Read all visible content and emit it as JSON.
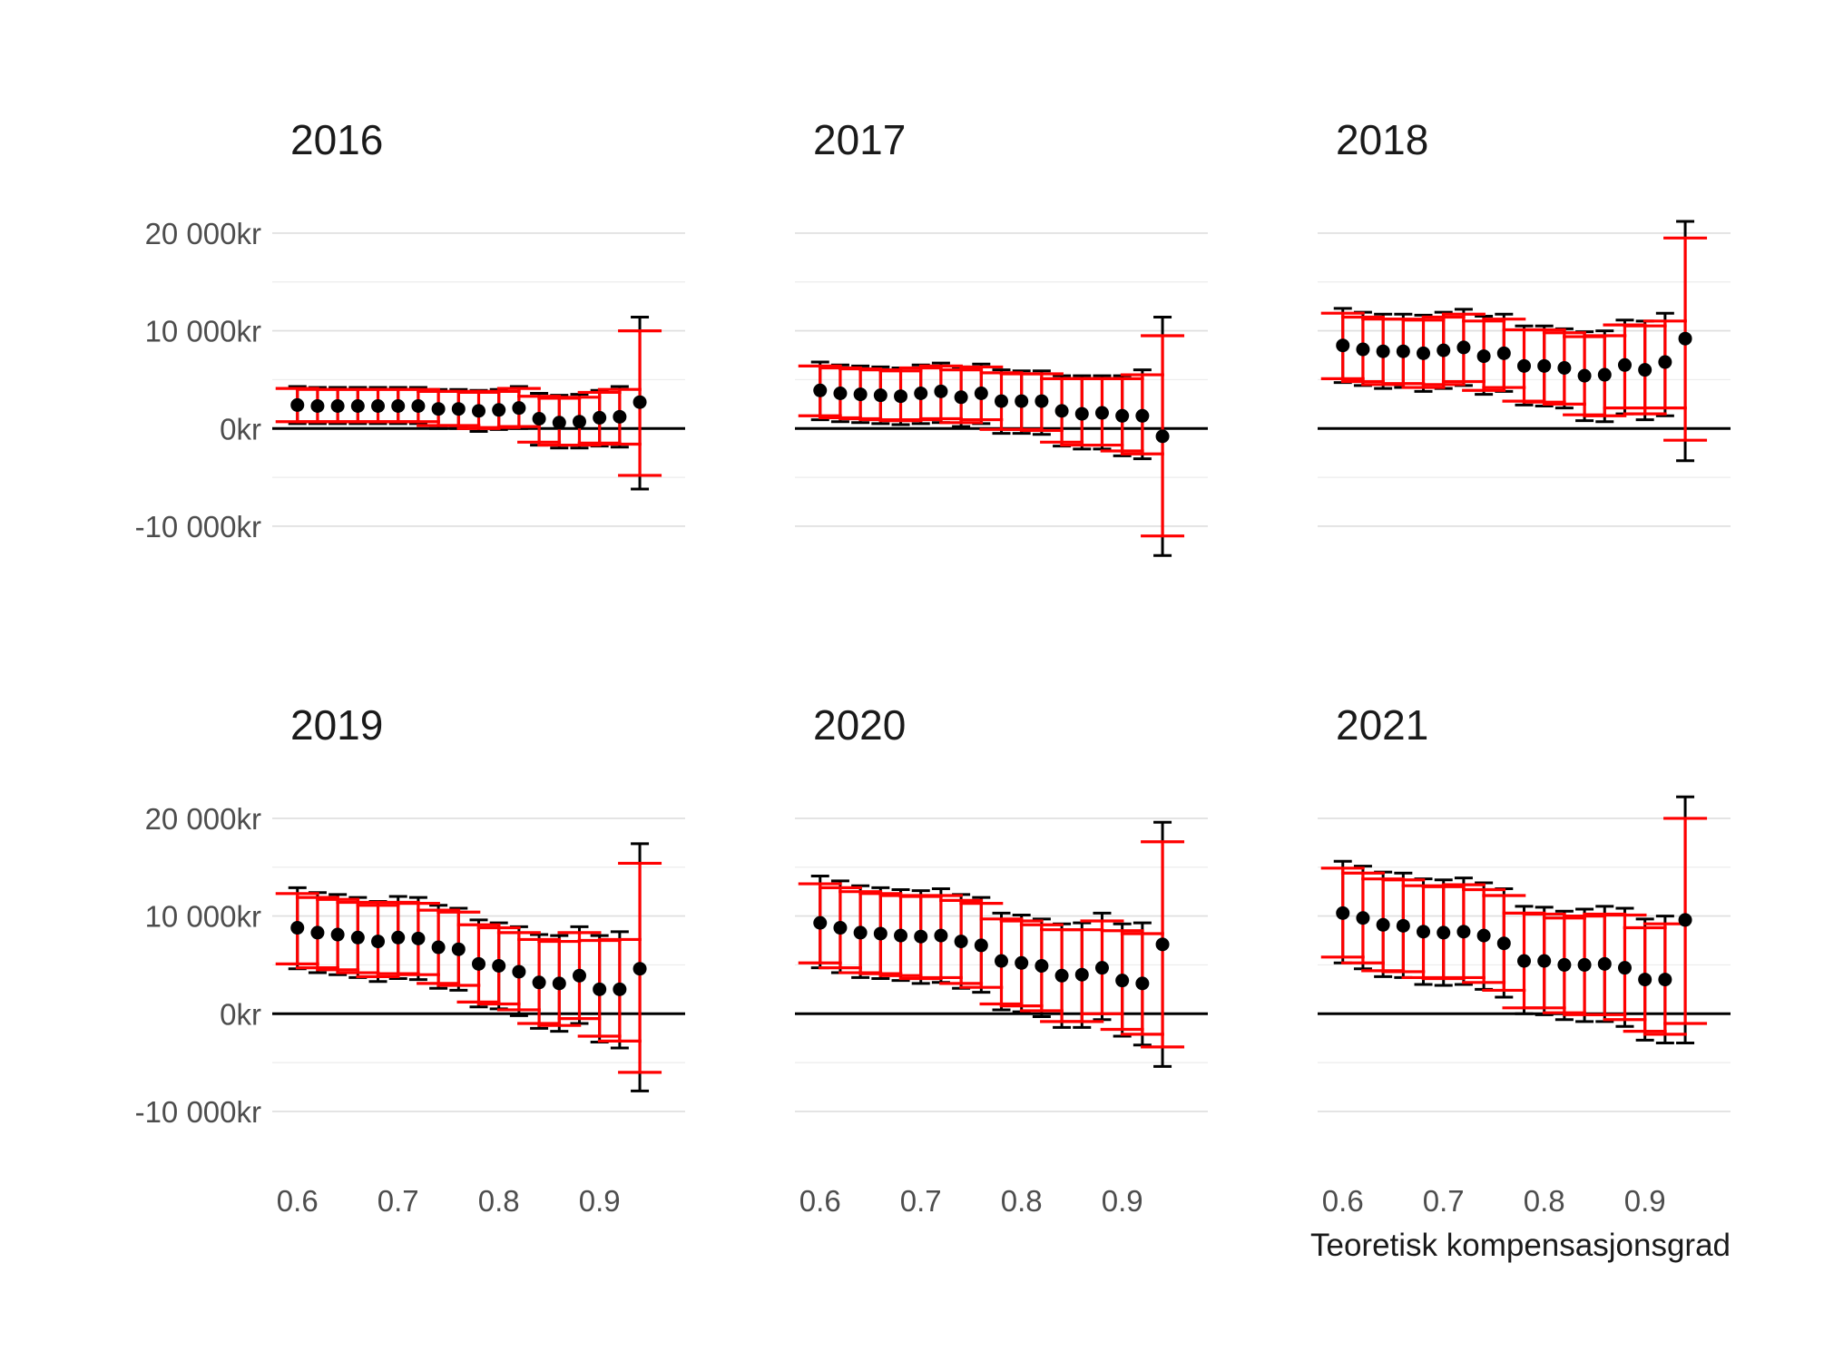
{
  "x_axis_title": "Teoretisk kompensasjonsgrad",
  "x_ticks": [
    {
      "value": 0.6,
      "label": "0.6"
    },
    {
      "value": 0.7,
      "label": "0.7"
    },
    {
      "value": 0.8,
      "label": "0.8"
    },
    {
      "value": 0.9,
      "label": "0.9"
    }
  ],
  "y_ticks": [
    {
      "value": 20000,
      "label": "20 000kr"
    },
    {
      "value": 10000,
      "label": "10 000kr"
    },
    {
      "value": 0,
      "label": "0kr"
    },
    {
      "value": -10000,
      "label": "-10 000kr"
    }
  ],
  "colors": {
    "point": "#000000",
    "ci_black": "#000000",
    "ci_red": "#ff0000",
    "zero_line": "#000000"
  },
  "chart_data": {
    "type": "scatter",
    "facets": [
      "2016",
      "2017",
      "2018",
      "2019",
      "2020",
      "2021"
    ],
    "x": [
      0.6,
      0.62,
      0.64,
      0.66,
      0.68,
      0.7,
      0.72,
      0.74,
      0.76,
      0.78,
      0.8,
      0.82,
      0.84,
      0.86,
      0.88,
      0.9,
      0.92,
      0.94
    ],
    "xlim": [
      0.575,
      0.985
    ],
    "ylim": [
      -14000,
      22500
    ],
    "grid": true,
    "panels": [
      {
        "title": "2016",
        "y": [
          2400,
          2300,
          2300,
          2300,
          2300,
          2300,
          2300,
          2000,
          2000,
          1800,
          1900,
          2100,
          1000,
          600,
          700,
          1100,
          1200,
          2700
        ],
        "ci_black": [
          [
            500,
            4300
          ],
          [
            500,
            4200
          ],
          [
            500,
            4200
          ],
          [
            500,
            4200
          ],
          [
            500,
            4200
          ],
          [
            500,
            4200
          ],
          [
            500,
            4200
          ],
          [
            0,
            4000
          ],
          [
            0,
            4000
          ],
          [
            -300,
            3900
          ],
          [
            -100,
            4000
          ],
          [
            0,
            4300
          ],
          [
            -1700,
            3600
          ],
          [
            -2000,
            3400
          ],
          [
            -2000,
            3500
          ],
          [
            -1800,
            3900
          ],
          [
            -1900,
            4300
          ],
          [
            -6200,
            11400
          ]
        ],
        "ci_red": [
          [
            700,
            4100
          ],
          [
            700,
            4000
          ],
          [
            700,
            4000
          ],
          [
            700,
            4000
          ],
          [
            700,
            4000
          ],
          [
            700,
            4000
          ],
          [
            700,
            4000
          ],
          [
            300,
            3800
          ],
          [
            300,
            3800
          ],
          [
            0,
            3700
          ],
          [
            100,
            3800
          ],
          [
            200,
            4100
          ],
          [
            -1400,
            3300
          ],
          [
            -1700,
            3100
          ],
          [
            -1700,
            3200
          ],
          [
            -1500,
            3700
          ],
          [
            -1600,
            4000
          ],
          [
            -4800,
            10000
          ]
        ]
      },
      {
        "title": "2017",
        "y": [
          3900,
          3600,
          3500,
          3400,
          3300,
          3600,
          3800,
          3200,
          3600,
          2800,
          2800,
          2800,
          1800,
          1500,
          1600,
          1300,
          1300,
          -800
        ],
        "ci_black": [
          [
            900,
            6800
          ],
          [
            700,
            6500
          ],
          [
            600,
            6400
          ],
          [
            500,
            6300
          ],
          [
            400,
            6200
          ],
          [
            500,
            6500
          ],
          [
            600,
            6700
          ],
          [
            200,
            6300
          ],
          [
            500,
            6600
          ],
          [
            -500,
            6000
          ],
          [
            -500,
            5900
          ],
          [
            -600,
            5900
          ],
          [
            -1800,
            5400
          ],
          [
            -2100,
            5400
          ],
          [
            -2100,
            5400
          ],
          [
            -2800,
            5400
          ],
          [
            -3100,
            6000
          ],
          [
            -13000,
            11400
          ]
        ],
        "ci_red": [
          [
            1300,
            6400
          ],
          [
            1100,
            6200
          ],
          [
            1000,
            6100
          ],
          [
            900,
            6000
          ],
          [
            800,
            5900
          ],
          [
            900,
            6200
          ],
          [
            1000,
            6400
          ],
          [
            600,
            6000
          ],
          [
            900,
            6300
          ],
          [
            -100,
            5700
          ],
          [
            -100,
            5600
          ],
          [
            -200,
            5600
          ],
          [
            -1400,
            5100
          ],
          [
            -1700,
            5100
          ],
          [
            -1700,
            5100
          ],
          [
            -2300,
            5100
          ],
          [
            -2600,
            5500
          ],
          [
            -11000,
            9500
          ]
        ]
      },
      {
        "title": "2018",
        "y": [
          8500,
          8100,
          7900,
          7900,
          7700,
          8000,
          8300,
          7400,
          7700,
          6400,
          6400,
          6200,
          5400,
          5500,
          6500,
          6000,
          6800,
          9200
        ],
        "ci_black": [
          [
            4700,
            12300
          ],
          [
            4400,
            11900
          ],
          [
            4100,
            11700
          ],
          [
            4200,
            11700
          ],
          [
            3800,
            11600
          ],
          [
            4100,
            11900
          ],
          [
            4400,
            12200
          ],
          [
            3500,
            11500
          ],
          [
            3800,
            11700
          ],
          [
            2400,
            10500
          ],
          [
            2300,
            10500
          ],
          [
            2100,
            10200
          ],
          [
            800,
            9900
          ],
          [
            700,
            10000
          ],
          [
            1500,
            11100
          ],
          [
            900,
            11000
          ],
          [
            1300,
            11800
          ],
          [
            -3300,
            21200
          ]
        ],
        "ci_red": [
          [
            5100,
            11800
          ],
          [
            4800,
            11400
          ],
          [
            4500,
            11200
          ],
          [
            4600,
            11200
          ],
          [
            4200,
            11100
          ],
          [
            4500,
            11400
          ],
          [
            4800,
            11700
          ],
          [
            3900,
            11000
          ],
          [
            4200,
            11200
          ],
          [
            2800,
            10100
          ],
          [
            2700,
            10100
          ],
          [
            2500,
            9800
          ],
          [
            1400,
            9400
          ],
          [
            1300,
            9500
          ],
          [
            2100,
            10600
          ],
          [
            1500,
            10500
          ],
          [
            2100,
            11000
          ],
          [
            -1200,
            19500
          ]
        ]
      },
      {
        "title": "2019",
        "y": [
          8800,
          8300,
          8100,
          7800,
          7400,
          7800,
          7700,
          6800,
          6600,
          5100,
          4900,
          4300,
          3200,
          3100,
          3900,
          2500,
          2500,
          4600
        ],
        "ci_black": [
          [
            4600,
            12900
          ],
          [
            4200,
            12400
          ],
          [
            4000,
            12200
          ],
          [
            3700,
            11900
          ],
          [
            3300,
            11500
          ],
          [
            3600,
            12000
          ],
          [
            3500,
            11900
          ],
          [
            2600,
            11100
          ],
          [
            2400,
            10800
          ],
          [
            700,
            9600
          ],
          [
            500,
            9300
          ],
          [
            -200,
            8900
          ],
          [
            -1500,
            8100
          ],
          [
            -1800,
            8000
          ],
          [
            -1000,
            8900
          ],
          [
            -2900,
            8000
          ],
          [
            -3500,
            8400
          ],
          [
            -7900,
            17400
          ]
        ],
        "ci_red": [
          [
            5100,
            12300
          ],
          [
            4700,
            11900
          ],
          [
            4500,
            11700
          ],
          [
            4200,
            11400
          ],
          [
            3800,
            11100
          ],
          [
            4100,
            11400
          ],
          [
            4000,
            11300
          ],
          [
            3100,
            10600
          ],
          [
            2900,
            10400
          ],
          [
            1200,
            9100
          ],
          [
            1000,
            8800
          ],
          [
            400,
            8300
          ],
          [
            -1000,
            7600
          ],
          [
            -1200,
            7400
          ],
          [
            -500,
            8300
          ],
          [
            -2300,
            7500
          ],
          [
            -2800,
            7600
          ],
          [
            -6000,
            15400
          ]
        ]
      },
      {
        "title": "2020",
        "y": [
          9300,
          8800,
          8300,
          8200,
          8000,
          7900,
          8000,
          7400,
          7000,
          5400,
          5200,
          4900,
          3900,
          4000,
          4700,
          3400,
          3100,
          7100
        ],
        "ci_black": [
          [
            4700,
            14100
          ],
          [
            4200,
            13600
          ],
          [
            3700,
            13100
          ],
          [
            3600,
            12900
          ],
          [
            3400,
            12700
          ],
          [
            3100,
            12600
          ],
          [
            3200,
            12800
          ],
          [
            2600,
            12200
          ],
          [
            2200,
            11900
          ],
          [
            400,
            10300
          ],
          [
            200,
            10100
          ],
          [
            -300,
            9700
          ],
          [
            -1400,
            9200
          ],
          [
            -1400,
            9300
          ],
          [
            -600,
            10300
          ],
          [
            -2300,
            9200
          ],
          [
            -3200,
            9300
          ],
          [
            -5400,
            19600
          ]
        ],
        "ci_red": [
          [
            5200,
            13300
          ],
          [
            4700,
            12900
          ],
          [
            4200,
            12500
          ],
          [
            4100,
            12300
          ],
          [
            3900,
            12100
          ],
          [
            3600,
            12000
          ],
          [
            3700,
            12100
          ],
          [
            3100,
            11600
          ],
          [
            2700,
            11300
          ],
          [
            1000,
            9700
          ],
          [
            800,
            9500
          ],
          [
            300,
            9100
          ],
          [
            -800,
            8600
          ],
          [
            -800,
            8600
          ],
          [
            0,
            9500
          ],
          [
            -1600,
            8500
          ],
          [
            -2100,
            8200
          ],
          [
            -3400,
            17600
          ]
        ]
      },
      {
        "title": "2021",
        "y": [
          10300,
          9800,
          9100,
          9000,
          8400,
          8300,
          8400,
          8000,
          7200,
          5400,
          5400,
          5000,
          5000,
          5100,
          4700,
          3500,
          3500,
          9600
        ],
        "ci_black": [
          [
            5200,
            15600
          ],
          [
            4600,
            15100
          ],
          [
            3800,
            14500
          ],
          [
            3700,
            14400
          ],
          [
            3000,
            13800
          ],
          [
            2900,
            13700
          ],
          [
            3000,
            13900
          ],
          [
            2500,
            13400
          ],
          [
            1700,
            12800
          ],
          [
            0,
            11000
          ],
          [
            -100,
            10900
          ],
          [
            -600,
            10500
          ],
          [
            -800,
            10700
          ],
          [
            -800,
            11000
          ],
          [
            -1300,
            10800
          ],
          [
            -2700,
            9700
          ],
          [
            -3000,
            10000
          ],
          [
            -3000,
            22200
          ]
        ],
        "ci_red": [
          [
            5800,
            14900
          ],
          [
            5200,
            14400
          ],
          [
            4400,
            13800
          ],
          [
            4300,
            13700
          ],
          [
            3700,
            13100
          ],
          [
            3600,
            13000
          ],
          [
            3700,
            13200
          ],
          [
            3200,
            12700
          ],
          [
            2400,
            12100
          ],
          [
            600,
            10300
          ],
          [
            600,
            10200
          ],
          [
            100,
            9800
          ],
          [
            -100,
            10000
          ],
          [
            -100,
            10200
          ],
          [
            -600,
            10100
          ],
          [
            -1800,
            8800
          ],
          [
            -2100,
            9200
          ],
          [
            -1000,
            20000
          ]
        ]
      }
    ]
  }
}
